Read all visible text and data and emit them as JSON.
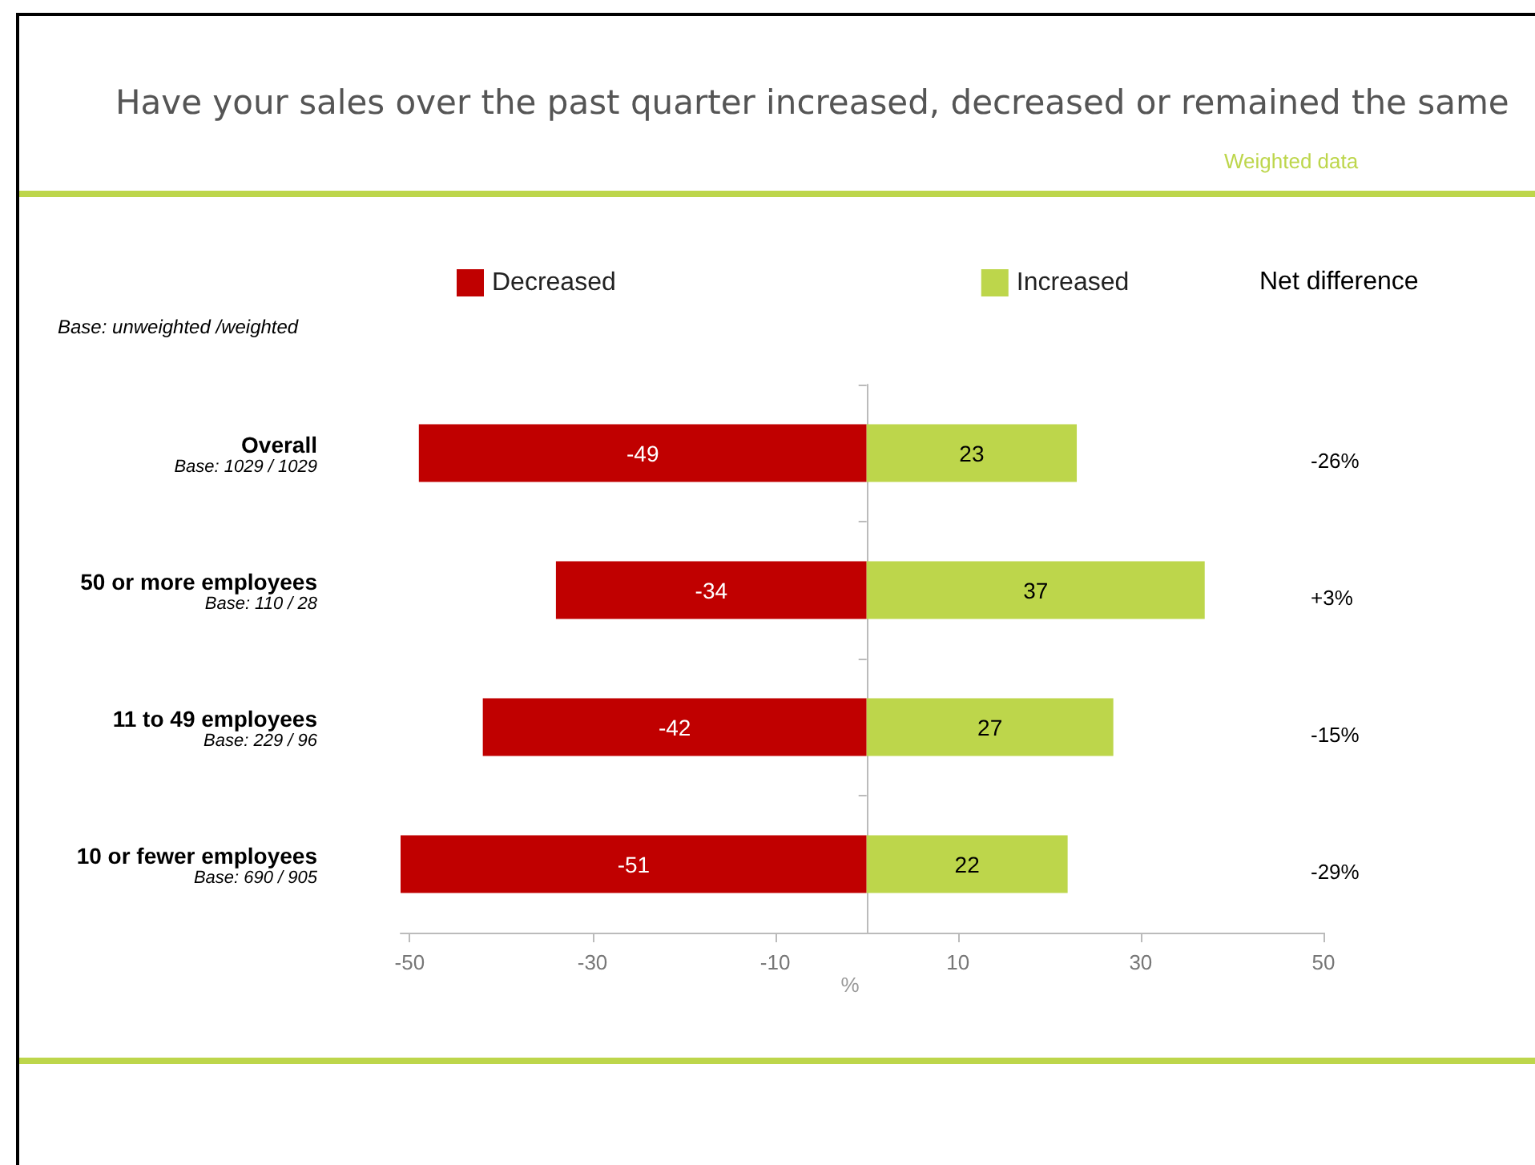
{
  "chart_data": {
    "type": "bar",
    "orientation": "horizontal",
    "stacked": true,
    "title": "Have your sales over the past quarter increased, decreased or remained the same",
    "categories": [
      "Overall\nBase: 1029 / 1029",
      "50 or more employees\nBase: 110 / 28",
      "11 to 49 employees\nBase: 229 / 96",
      "10 or fewer employees\nBase: 690 / 905"
    ],
    "series": [
      {
        "name": "Decreased",
        "color": "#c00000",
        "values": [
          -49,
          -34,
          -42,
          -51
        ]
      },
      {
        "name": "Increased",
        "color": "#bdd64b",
        "values": [
          23,
          37,
          27,
          22
        ]
      }
    ],
    "data_labels": true,
    "xlabel": "%",
    "xlim": [
      -51,
      50
    ],
    "xticks": [
      -50,
      -30,
      -10,
      10,
      30,
      50
    ],
    "grid": false,
    "legend": "top",
    "annotations": [
      "Weighted data",
      "Base: unweighted /weighted",
      "Net difference",
      "-26%",
      "+3%",
      "-15%",
      "-29%"
    ]
  }
}
